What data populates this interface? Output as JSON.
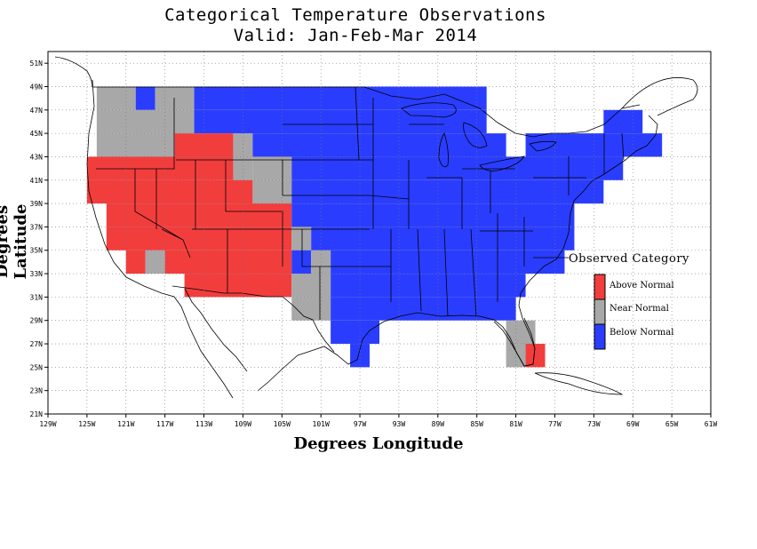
{
  "title": "Categorical Temperature Observations",
  "subtitle": "Valid: Jan-Feb-Mar 2014",
  "ylabel": "Degrees Latitude",
  "xlabel": "Degrees Longitude",
  "legend": {
    "title": "Observed Category",
    "items": [
      {
        "label": "Above Normal",
        "color": "#f23d3d"
      },
      {
        "label": "Near Normal",
        "color": "#a8a8a8"
      },
      {
        "label": "Below Normal",
        "color": "#2a3dff"
      }
    ]
  },
  "colors": {
    "A": "#f23d3d",
    "N": "#a8a8a8",
    "B": "#2a3dff"
  },
  "chart_data": {
    "type": "heatmap",
    "title": "Categorical Temperature Observations",
    "subtitle": "Valid: Jan-Feb-Mar 2014",
    "xlabel": "Degrees Longitude",
    "ylabel": "Degrees Latitude",
    "xlim": [
      -129,
      -61
    ],
    "ylim": [
      21,
      52
    ],
    "x_ticks": [
      "129W",
      "125W",
      "121W",
      "117W",
      "113W",
      "109W",
      "105W",
      "101W",
      "97W",
      "93W",
      "89W",
      "85W",
      "81W",
      "77W",
      "73W",
      "69W",
      "65W",
      "61W"
    ],
    "y_ticks": [
      "21N",
      "23N",
      "25N",
      "27N",
      "29N",
      "31N",
      "33N",
      "35N",
      "37N",
      "39N",
      "41N",
      "43N",
      "45N",
      "47N",
      "49N",
      "51N"
    ],
    "grid": true,
    "legend_position": "right",
    "cell_lon_deg": 2,
    "cell_lat_deg": 2,
    "categories": [
      "Above Normal",
      "Near Normal",
      "Below Normal"
    ],
    "cells": [
      {
        "lat_range": [
          47,
          49
        ],
        "segments": [
          [
            -124,
            -120,
            "N"
          ],
          [
            -120,
            -118,
            "B"
          ],
          [
            -118,
            -114,
            "N"
          ],
          [
            -114,
            -84,
            "B"
          ]
        ]
      },
      {
        "lat_range": [
          45,
          47
        ],
        "segments": [
          [
            -124,
            -114,
            "N"
          ],
          [
            -114,
            -84,
            "B"
          ],
          [
            -72,
            -68,
            "B"
          ]
        ]
      },
      {
        "lat_range": [
          43,
          45
        ],
        "segments": [
          [
            -124,
            -116,
            "N"
          ],
          [
            -116,
            -110,
            "A"
          ],
          [
            -110,
            -108,
            "N"
          ],
          [
            -108,
            -82,
            "B"
          ],
          [
            -80,
            -66,
            "B"
          ]
        ]
      },
      {
        "lat_range": [
          41,
          43
        ],
        "segments": [
          [
            -125,
            -110,
            "A"
          ],
          [
            -110,
            -108,
            "N"
          ],
          [
            -108,
            -104,
            "N"
          ],
          [
            -104,
            -70,
            "B"
          ]
        ]
      },
      {
        "lat_range": [
          39,
          41
        ],
        "segments": [
          [
            -125,
            -108,
            "A"
          ],
          [
            -108,
            -104,
            "N"
          ],
          [
            -104,
            -72,
            "B"
          ]
        ]
      },
      {
        "lat_range": [
          37,
          39
        ],
        "segments": [
          [
            -123,
            -104,
            "A"
          ],
          [
            -104,
            -75,
            "B"
          ]
        ]
      },
      {
        "lat_range": [
          35,
          37
        ],
        "segments": [
          [
            -123,
            -104,
            "A"
          ],
          [
            -104,
            -102,
            "N"
          ],
          [
            -102,
            -75,
            "B"
          ]
        ]
      },
      {
        "lat_range": [
          33,
          35
        ],
        "segments": [
          [
            -121,
            -119,
            "A"
          ],
          [
            -119,
            -117,
            "N"
          ],
          [
            -117,
            -104,
            "A"
          ],
          [
            -104,
            -102,
            "B"
          ],
          [
            -102,
            -100,
            "N"
          ],
          [
            -100,
            -76,
            "B"
          ]
        ]
      },
      {
        "lat_range": [
          31,
          33
        ],
        "segments": [
          [
            -115,
            -104,
            "A"
          ],
          [
            -104,
            -100,
            "N"
          ],
          [
            -100,
            -80,
            "B"
          ]
        ]
      },
      {
        "lat_range": [
          29,
          31
        ],
        "segments": [
          [
            -104,
            -100,
            "N"
          ],
          [
            -100,
            -81,
            "B"
          ]
        ]
      },
      {
        "lat_range": [
          27,
          29
        ],
        "segments": [
          [
            -100,
            -95,
            "B"
          ],
          [
            -82,
            -79,
            "N"
          ]
        ]
      },
      {
        "lat_range": [
          25,
          27
        ],
        "segments": [
          [
            -98,
            -96,
            "B"
          ],
          [
            -82,
            -80,
            "N"
          ],
          [
            -80,
            -78,
            "A"
          ]
        ]
      }
    ]
  }
}
